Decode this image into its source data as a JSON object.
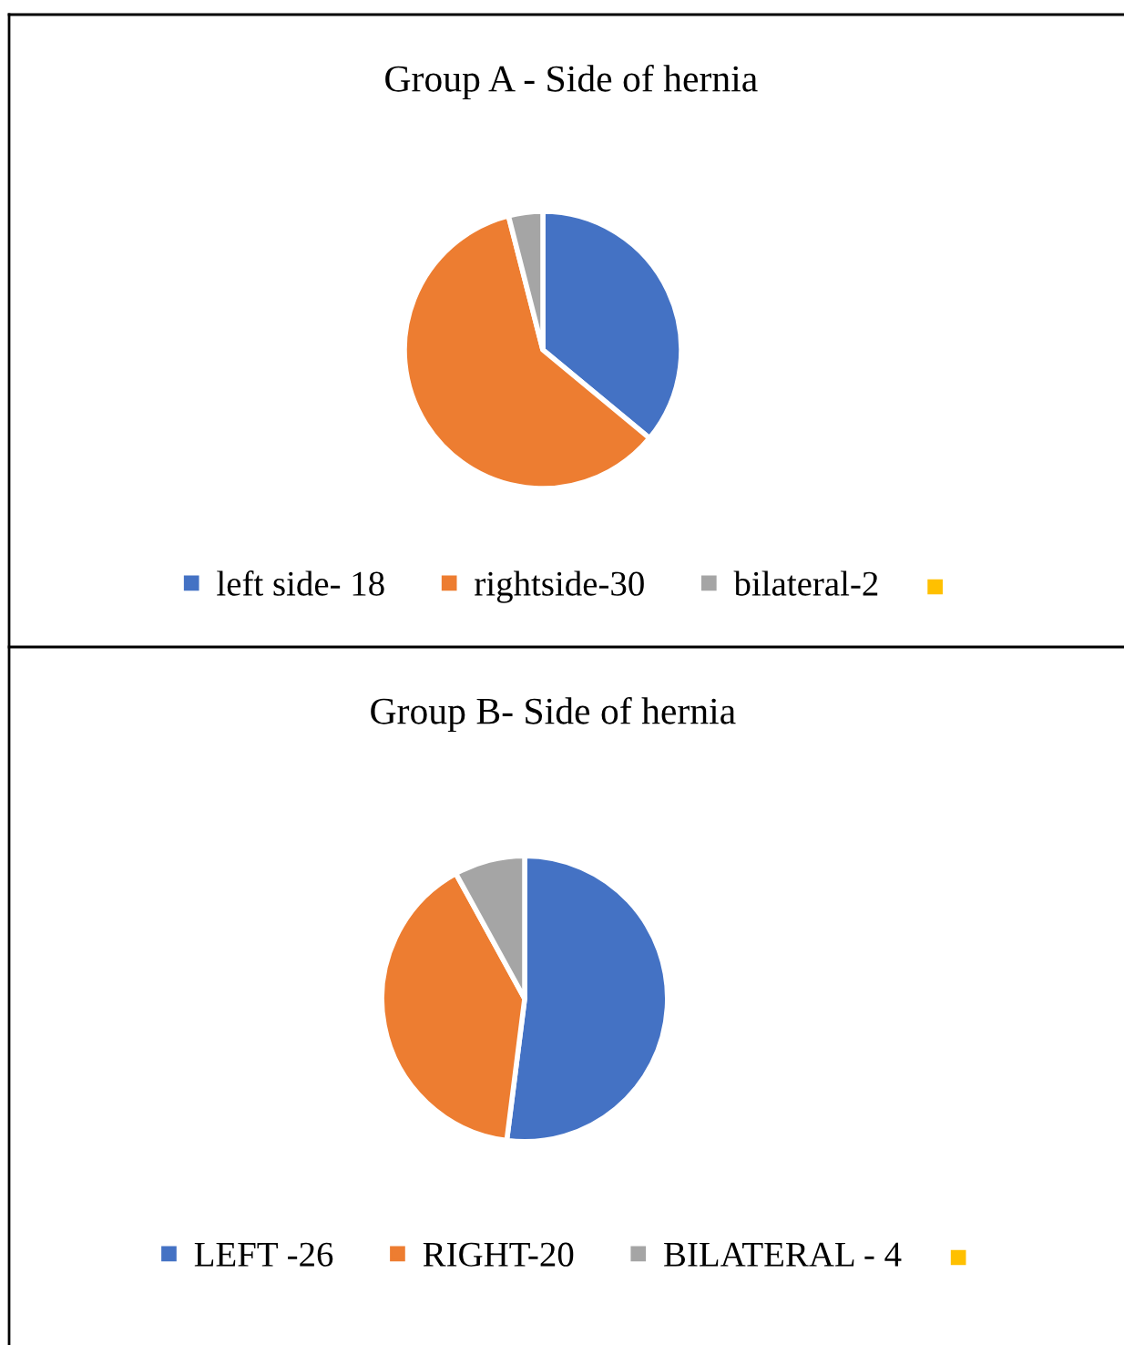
{
  "chart_data": [
    {
      "type": "pie",
      "title": "Group A - Side of hernia",
      "categories": [
        "left side- 18",
        "rightside-30",
        "bilateral-2"
      ],
      "values": [
        36,
        60,
        4
      ],
      "colors": [
        "#4472c4",
        "#ed7d31",
        "#a5a5a5"
      ],
      "legend": "bottom"
    },
    {
      "type": "pie",
      "title": "Group B- Side of hernia",
      "categories": [
        "LEFT -26",
        "RIGHT-20",
        "BILATERAL - 4"
      ],
      "values": [
        52,
        40,
        8
      ],
      "colors": [
        "#4472c4",
        "#ed7d31",
        "#a5a5a5"
      ],
      "legend": "bottom"
    }
  ]
}
